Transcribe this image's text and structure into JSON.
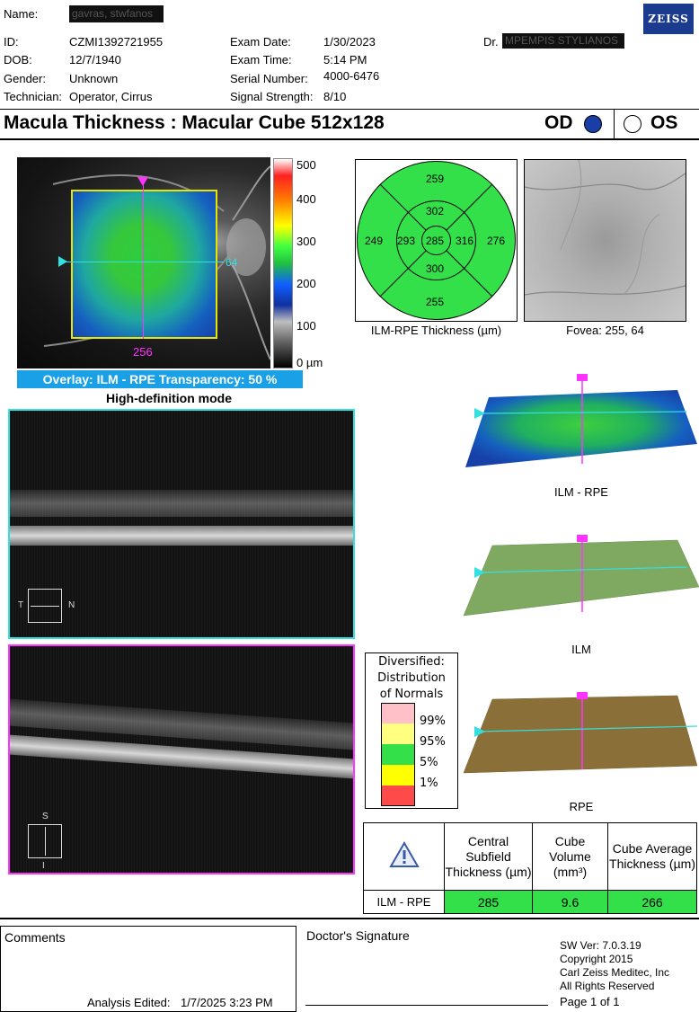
{
  "header": {
    "name_label": "Name:",
    "name_value": "gavras, stwfanos",
    "id_label": "ID:",
    "id_value": "CZMI1392721955",
    "dob_label": "DOB:",
    "dob_value": "12/7/1940",
    "gender_label": "Gender:",
    "gender_value": "Unknown",
    "technician_label": "Technician:",
    "technician_value": "Operator, Cirrus",
    "exam_date_label": "Exam Date:",
    "exam_date_value": "1/30/2023",
    "exam_time_label": "Exam Time:",
    "exam_time_value": "5:14 PM",
    "serial_label": "Serial Number:",
    "serial_value": "4000-6476",
    "signal_label": "Signal Strength:",
    "signal_value": "8/10",
    "doctor_label": "Dr.",
    "doctor_value": "MPEMPIS STYLIANOS",
    "logo": "ZEISS"
  },
  "title_bar": {
    "title": "Macula Thickness : Macular Cube 512x128",
    "od_label": "OD",
    "os_label": "OS",
    "selected_eye": "OD"
  },
  "fundus": {
    "h_pos": "64",
    "v_pos": "256",
    "scale_ticks": [
      "500",
      "400",
      "300",
      "200",
      "100",
      "0 µm"
    ],
    "overlay_text": "Overlay: ILM - RPE  Transparency: 50 %"
  },
  "grid_map": {
    "center": "285",
    "inner_top": "302",
    "inner_bottom": "300",
    "inner_left": "293",
    "inner_right": "316",
    "outer_top": "259",
    "outer_bottom": "255",
    "outer_left": "249",
    "outer_right": "276",
    "caption": "ILM-RPE Thickness (µm)"
  },
  "fovea": {
    "caption": "Fovea: 255, 64"
  },
  "hd_mode_label": "High-definition mode",
  "scan_h": {
    "left": "T",
    "right": "N"
  },
  "scan_v": {
    "top": "S",
    "bottom": "I"
  },
  "surfaces": {
    "ilm_rpe": "ILM - RPE",
    "ilm": "ILM",
    "rpe": "RPE"
  },
  "legend": {
    "title": [
      "Diversified:",
      "Distribution",
      "of Normals"
    ],
    "percents": [
      "99%",
      "95%",
      "5%",
      "1%"
    ],
    "colors": [
      "#ffc0c8",
      "#ffff80",
      "#33e04a",
      "#ffff00",
      "#ff4a4a"
    ]
  },
  "results": {
    "col1": "Central Subfield Thickness (µm)",
    "col2": "Cube Volume (mm³)",
    "col3": "Cube Average Thickness (µm)",
    "row_label": "ILM - RPE",
    "csf": "285",
    "volume": "9.6",
    "avg": "266",
    "warning_icon": "warning-triangle-icon"
  },
  "footer": {
    "comments_label": "Comments",
    "analysis_label": "Analysis Edited:",
    "analysis_value": "1/7/2025 3:23 PM",
    "signature_label": "Doctor's Signature",
    "sw_ver": "SW Ver: 7.0.3.19",
    "copyright": "Copyright 2015",
    "company": "Carl Zeiss Meditec, Inc",
    "rights": "All Rights Reserved",
    "page": "Page 1 of 1"
  }
}
